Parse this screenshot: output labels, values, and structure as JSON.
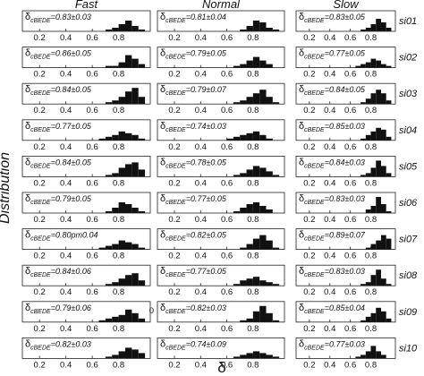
{
  "chart_data": {
    "type": "histogram",
    "x_label": "δ",
    "y_label": "Distribution",
    "annotation": "0",
    "columns": [
      "Fast",
      "Normal",
      "Slow"
    ],
    "rows": [
      "si01",
      "si02",
      "si03",
      "si04",
      "si05",
      "si06",
      "si07",
      "si08",
      "si09",
      "si10"
    ],
    "xlim": [
      0.07,
      1.04
    ],
    "xticks": [
      0.2,
      0.4,
      0.6,
      0.8
    ],
    "ylim": [
      0,
      10
    ],
    "bins": [
      0.6,
      0.65,
      0.7,
      0.75,
      0.8,
      0.85,
      0.9,
      0.95,
      1.0
    ],
    "color": "#111111",
    "panels": [
      [
        {
          "label": {
            "symbol": "δ",
            "sub": "cBEDE",
            "text": "=0.83±0.03"
          },
          "counts": [
            0,
            0,
            1,
            2,
            4,
            6,
            3,
            1
          ]
        },
        {
          "label": {
            "symbol": "δ",
            "sub": "cBEDE",
            "text": "=0.81±0.04"
          },
          "counts": [
            0,
            0,
            1,
            3,
            6,
            5,
            2,
            1
          ]
        },
        {
          "label": {
            "symbol": "δ",
            "sub": "cBEDE",
            "text": "=0.83±0.05"
          },
          "counts": [
            0,
            0,
            1,
            2,
            4,
            7,
            5,
            2
          ]
        }
      ],
      [
        {
          "label": {
            "symbol": "δ",
            "sub": "cBEDE",
            "text": "=0.86±0.05"
          },
          "counts": [
            0,
            0,
            1,
            1,
            3,
            7,
            5,
            2
          ]
        },
        {
          "label": {
            "symbol": "δ",
            "sub": "cBEDE",
            "text": "=0.79±0.05"
          },
          "counts": [
            0,
            1,
            2,
            4,
            6,
            4,
            2,
            0
          ]
        },
        {
          "label": {
            "symbol": "δ",
            "sub": "cBEDE",
            "text": "=0.77±0.05"
          },
          "counts": [
            0,
            1,
            2,
            3,
            5,
            4,
            2,
            1
          ]
        }
      ],
      [
        {
          "label": {
            "symbol": "δ",
            "sub": "cBEDE",
            "text": "=0.84±0.05"
          },
          "counts": [
            0,
            0,
            1,
            2,
            4,
            7,
            9,
            4
          ]
        },
        {
          "label": {
            "symbol": "δ",
            "sub": "cBEDE",
            "text": "=0.79±0.07"
          },
          "counts": [
            0,
            1,
            2,
            4,
            6,
            8,
            4,
            1
          ]
        },
        {
          "label": {
            "symbol": "δ",
            "sub": "cBEDE",
            "text": "=0.84±0.05"
          },
          "counts": [
            0,
            0,
            1,
            3,
            6,
            8,
            6,
            2
          ]
        }
      ],
      [
        {
          "label": {
            "symbol": "δ",
            "sub": "cBEDE",
            "text": "=0.77±0.05"
          },
          "counts": [
            0,
            1,
            2,
            3,
            5,
            4,
            3,
            1
          ]
        },
        {
          "label": {
            "symbol": "δ",
            "sub": "cBEDE",
            "text": "=0.74±0.03"
          },
          "counts": [
            1,
            2,
            3,
            4,
            5,
            3,
            1,
            0
          ]
        },
        {
          "label": {
            "symbol": "δ",
            "sub": "cBEDE",
            "text": "=0.85±0.03"
          },
          "counts": [
            0,
            0,
            1,
            3,
            5,
            7,
            6,
            2
          ]
        }
      ],
      [
        {
          "label": {
            "symbol": "δ",
            "sub": "cBEDE",
            "text": "=0.84±0.05"
          },
          "counts": [
            0,
            0,
            1,
            2,
            5,
            7,
            8,
            4
          ]
        },
        {
          "label": {
            "symbol": "δ",
            "sub": "cBEDE",
            "text": "=0.78±0.05"
          },
          "counts": [
            0,
            1,
            2,
            4,
            6,
            5,
            3,
            1
          ]
        },
        {
          "label": {
            "symbol": "δ",
            "sub": "cBEDE",
            "text": "=0.84±0.03"
          },
          "counts": [
            0,
            0,
            1,
            2,
            5,
            9,
            6,
            2
          ]
        }
      ],
      [
        {
          "label": {
            "symbol": "δ",
            "sub": "cBEDE",
            "text": "=0.79±0.05"
          },
          "counts": [
            0,
            0,
            1,
            3,
            6,
            5,
            3,
            1
          ]
        },
        {
          "label": {
            "symbol": "δ",
            "sub": "cBEDE",
            "text": "=0.77±0.05"
          },
          "counts": [
            0,
            1,
            3,
            5,
            6,
            4,
            2,
            0
          ]
        },
        {
          "label": {
            "symbol": "δ",
            "sub": "cBEDE",
            "text": "=0.83±0.03"
          },
          "counts": [
            0,
            0,
            0,
            2,
            4,
            9,
            5,
            1
          ]
        }
      ],
      [
        {
          "label": {
            "symbol": "δ",
            "sub": "cBEDE",
            "text": "=0.80pm0.04"
          },
          "counts": [
            0,
            1,
            2,
            3,
            5,
            4,
            3,
            1
          ]
        },
        {
          "label": {
            "symbol": "δ",
            "sub": "cBEDE",
            "text": "=0.82±0.05"
          },
          "counts": [
            0,
            0,
            1,
            3,
            6,
            8,
            5,
            1
          ]
        },
        {
          "label": {
            "symbol": "δ",
            "sub": "cBEDE",
            "text": "=0.89±0.07"
          },
          "counts": [
            0,
            0,
            0,
            1,
            3,
            5,
            8,
            6
          ]
        }
      ],
      [
        {
          "label": {
            "symbol": "δ",
            "sub": "cBEDE",
            "text": "=0.84±0.06"
          },
          "counts": [
            0,
            0,
            1,
            2,
            4,
            6,
            7,
            3
          ]
        },
        {
          "label": {
            "symbol": "δ",
            "sub": "cBEDE",
            "text": "=0.77±0.05"
          },
          "counts": [
            0,
            1,
            3,
            4,
            5,
            3,
            2,
            1
          ]
        },
        {
          "label": {
            "symbol": "δ",
            "sub": "cBEDE",
            "text": "=0.83±0.03"
          },
          "counts": [
            0,
            0,
            1,
            2,
            6,
            9,
            4,
            1
          ]
        }
      ],
      [
        {
          "label": {
            "symbol": "δ",
            "sub": "cBEDE",
            "text": "=0.79±0.06"
          },
          "counts": [
            0,
            1,
            2,
            3,
            4,
            7,
            5,
            2
          ]
        },
        {
          "label": {
            "symbol": "δ",
            "sub": "cBEDE",
            "text": "=0.82±0.03"
          },
          "counts": [
            0,
            0,
            1,
            2,
            6,
            9,
            5,
            1
          ]
        },
        {
          "label": {
            "symbol": "δ",
            "sub": "cBEDE",
            "text": "=0.85±0.04"
          },
          "counts": [
            0,
            0,
            1,
            3,
            5,
            8,
            6,
            2
          ]
        }
      ],
      [
        {
          "label": {
            "symbol": "δ",
            "sub": "cBEDE",
            "text": "=0.82±0.03"
          },
          "counts": [
            0,
            0,
            1,
            2,
            4,
            6,
            5,
            3
          ]
        },
        {
          "label": {
            "symbol": "δ",
            "sub": "cBEDE",
            "text": "=0.74±0.09"
          },
          "counts": [
            0,
            1,
            2,
            3,
            4,
            3,
            2,
            1
          ]
        },
        {
          "label": {
            "symbol": "δ",
            "sub": "cBEDE",
            "text": "=0.77±0.03"
          },
          "counts": [
            0,
            1,
            2,
            4,
            7,
            4,
            2,
            0
          ]
        }
      ]
    ]
  }
}
